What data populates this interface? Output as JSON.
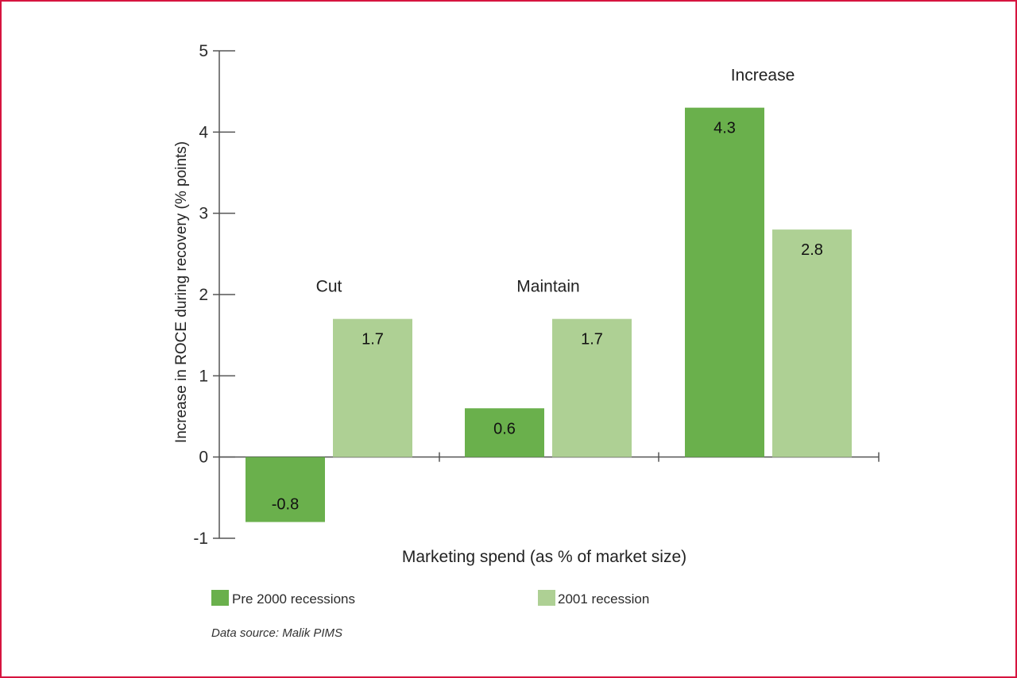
{
  "chart_data": {
    "type": "bar",
    "categories": [
      "Cut",
      "Maintain",
      "Increase"
    ],
    "series": [
      {
        "name": "Pre 2000 recessions",
        "color": "#6ab04c",
        "values": [
          -0.8,
          0.6,
          4.3
        ]
      },
      {
        "name": "2001 recession",
        "color": "#aed094",
        "values": [
          1.7,
          1.7,
          2.8
        ]
      }
    ],
    "data_labels": [
      [
        "-0.8",
        "0.6",
        "4.3"
      ],
      [
        "1.7",
        "1.7",
        "2.8"
      ]
    ],
    "title": "",
    "xlabel": "Marketing spend (as % of market size)",
    "ylabel": "Increase in ROCE during recovery (% points)",
    "ylim": [
      -1,
      5
    ],
    "yticks": [
      "-1",
      "0",
      "1",
      "2",
      "3",
      "4",
      "5"
    ],
    "grid": false,
    "legend_position": "bottom"
  },
  "source": "Data source: Malik PIMS",
  "colors": {
    "frame": "#d6143f",
    "axis": "#555555"
  }
}
